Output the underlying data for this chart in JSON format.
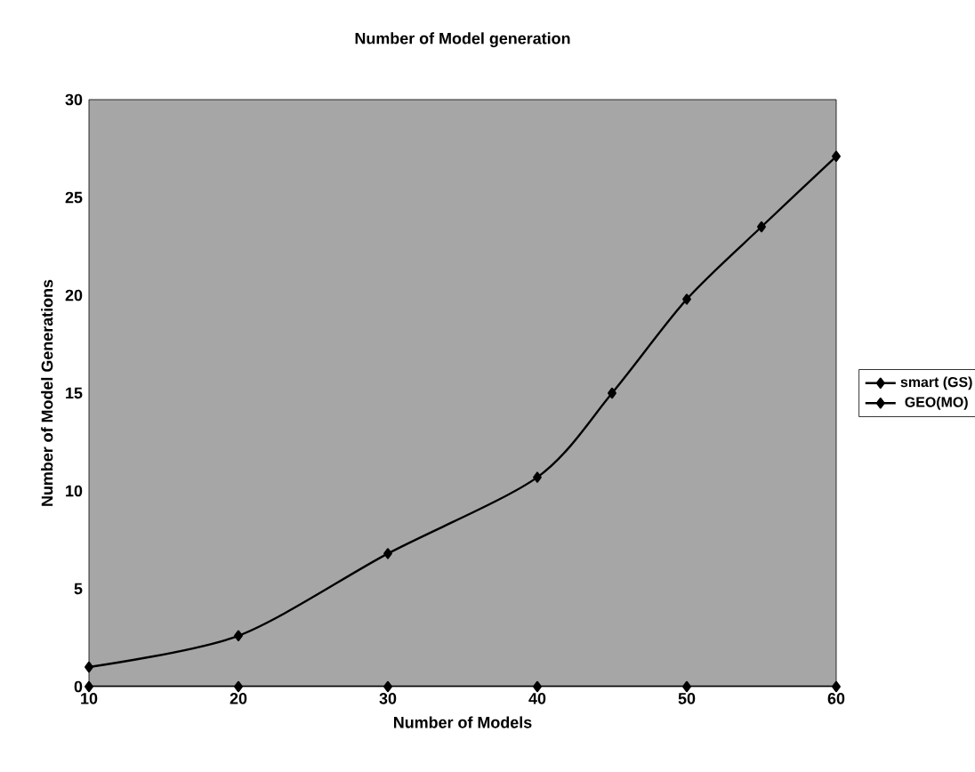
{
  "chart_data": {
    "type": "line",
    "title": "Number of Model generation",
    "xlabel": "Number of Models",
    "ylabel": "Number of Model Generations",
    "xlim": [
      10,
      60
    ],
    "xticks": [
      10,
      20,
      30,
      40,
      50,
      60
    ],
    "ylim": [
      0,
      30
    ],
    "yticks": [
      0,
      5,
      10,
      15,
      20,
      25,
      30
    ],
    "series": [
      {
        "name": "smart (GS)",
        "color": "#000000",
        "x": [
          10,
          20,
          30,
          40,
          45,
          50,
          55,
          60
        ],
        "values": [
          1,
          2.6,
          6.8,
          10.7,
          15,
          19.8,
          23.5,
          27.1
        ]
      },
      {
        "name": "GEO(MO)",
        "color": "#000000",
        "x": [
          10,
          20,
          30,
          40,
          50,
          60
        ],
        "values": [
          0,
          0,
          0,
          0,
          0,
          0
        ]
      }
    ],
    "marker": "diamond",
    "line_style": "solid",
    "grid": false,
    "legend": "right"
  }
}
